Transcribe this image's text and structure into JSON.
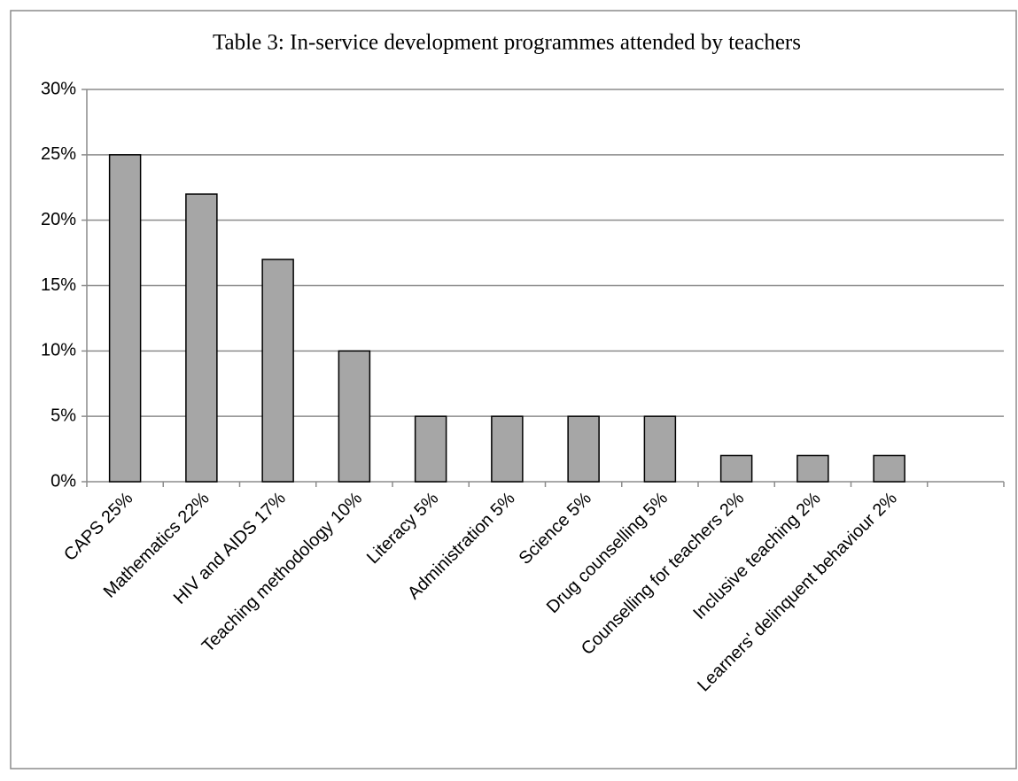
{
  "chart_data": {
    "type": "bar",
    "title": "Table 3: In-service development programmes attended by teachers",
    "categories": [
      "CAPS 25%",
      "Mathematics 22%",
      "HIV and AIDS 17%",
      "Teaching methodology 10%",
      "Literacy 5%",
      "Administration 5%",
      "Science 5%",
      "Drug counselling 5%",
      "Counselling for teachers 2%",
      "Inclusive teaching 2%",
      "Learners' delinquent behaviour 2%",
      null
    ],
    "values": [
      25,
      22,
      17,
      10,
      5,
      5,
      5,
      5,
      2,
      2,
      2,
      null
    ],
    "color": "#a6a6a6",
    "ylim": [
      0,
      30
    ],
    "yticks": [
      {
        "value": 0,
        "label": "0%"
      },
      {
        "value": 5,
        "label": "5%"
      },
      {
        "value": 10,
        "label": "10%"
      },
      {
        "value": 15,
        "label": "15%"
      },
      {
        "value": 20,
        "label": "20%"
      },
      {
        "value": 25,
        "label": "25%"
      },
      {
        "value": 30,
        "label": "30%"
      }
    ],
    "grid": true
  }
}
